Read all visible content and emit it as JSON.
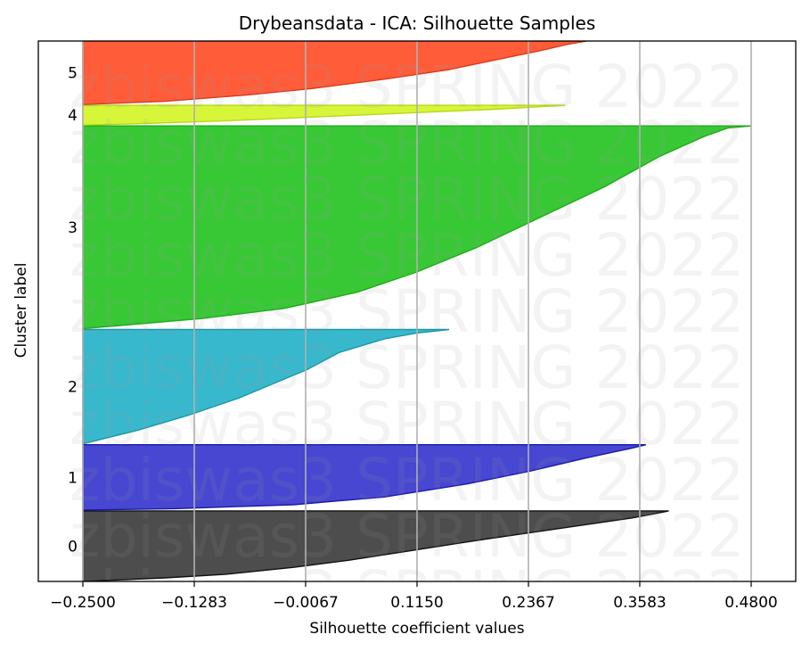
{
  "chart_data": {
    "type": "area",
    "title": "Drybeansdata - ICA: Silhouette Samples",
    "xlabel": "Silhouette coefficient values",
    "ylabel": "Cluster label",
    "xlim": [
      -0.25,
      0.48
    ],
    "xticks": [
      -0.25,
      -0.1283,
      -0.0067,
      0.115,
      0.2367,
      0.3583,
      0.48
    ],
    "xtick_labels": [
      "−0.2500",
      "−0.1283",
      "−0.0067",
      "0.1150",
      "0.2367",
      "0.3583",
      "0.4800"
    ],
    "grid": "vertical",
    "ylim": [
      0,
      6050
    ],
    "watermark": "zbiswas3 SPRING 2022",
    "clusters": [
      {
        "label": "0",
        "color": "#3a3a3a",
        "stroke": "#111111",
        "y_range": [
          0,
          790
        ],
        "profile": [
          [
            0,
            0.39
          ],
          [
            0.04,
            0.375
          ],
          [
            0.1,
            0.35
          ],
          [
            0.25,
            0.27
          ],
          [
            0.4,
            0.19
          ],
          [
            0.55,
            0.115
          ],
          [
            0.7,
            0.04
          ],
          [
            0.8,
            -0.02
          ],
          [
            0.9,
            -0.095
          ],
          [
            0.95,
            -0.16
          ],
          [
            1,
            -0.25
          ]
        ]
      },
      {
        "label": "1",
        "color": "#3333cc",
        "stroke": "#1a1aa8",
        "y_range": [
          800,
          1530
        ],
        "profile": [
          [
            0,
            0.365
          ],
          [
            0.05,
            0.35
          ],
          [
            0.2,
            0.3
          ],
          [
            0.4,
            0.24
          ],
          [
            0.6,
            0.17
          ],
          [
            0.8,
            0.08
          ],
          [
            0.92,
            -0.02
          ],
          [
            0.98,
            -0.15
          ],
          [
            1,
            -0.25
          ]
        ]
      },
      {
        "label": "2",
        "color": "#22b0c6",
        "stroke": "#1898a8",
        "y_range": [
          1540,
          2820
        ],
        "profile": [
          [
            0,
            0.15
          ],
          [
            0.03,
            0.115
          ],
          [
            0.08,
            0.08
          ],
          [
            0.2,
            0.03
          ],
          [
            0.35,
            -0.005
          ],
          [
            0.5,
            -0.05
          ],
          [
            0.6,
            -0.08
          ],
          [
            0.75,
            -0.135
          ],
          [
            0.88,
            -0.19
          ],
          [
            0.95,
            -0.225
          ],
          [
            1,
            -0.25
          ]
        ]
      },
      {
        "label": "3",
        "color": "#22c21f",
        "stroke": "#1faa1a",
        "y_range": [
          2830,
          5100
        ],
        "profile": [
          [
            0,
            0.48
          ],
          [
            0.01,
            0.455
          ],
          [
            0.05,
            0.43
          ],
          [
            0.15,
            0.38
          ],
          [
            0.3,
            0.32
          ],
          [
            0.45,
            0.25
          ],
          [
            0.6,
            0.18
          ],
          [
            0.72,
            0.115
          ],
          [
            0.82,
            0.05
          ],
          [
            0.9,
            -0.03
          ],
          [
            0.95,
            -0.12
          ],
          [
            1,
            -0.25
          ]
        ]
      },
      {
        "label": "4",
        "color": "#d3f525",
        "stroke": "#b8d816",
        "y_range": [
          5110,
          5330
        ],
        "profile": [
          [
            0,
            0.277
          ],
          [
            0.2,
            0.2
          ],
          [
            0.4,
            0.1
          ],
          [
            0.6,
            0.0
          ],
          [
            0.8,
            -0.1
          ],
          [
            0.95,
            -0.2
          ],
          [
            1,
            -0.25
          ]
        ]
      },
      {
        "label": "5",
        "color": "#ff4a24",
        "stroke": "#d93a1a",
        "y_range": [
          5340,
          6050
        ],
        "profile": [
          [
            0,
            0.3
          ],
          [
            0.05,
            0.28
          ],
          [
            0.15,
            0.25
          ],
          [
            0.3,
            0.2
          ],
          [
            0.45,
            0.15
          ],
          [
            0.6,
            0.08
          ],
          [
            0.75,
            0.0
          ],
          [
            0.85,
            -0.07
          ],
          [
            0.95,
            -0.16
          ],
          [
            1,
            -0.25
          ]
        ]
      }
    ]
  }
}
